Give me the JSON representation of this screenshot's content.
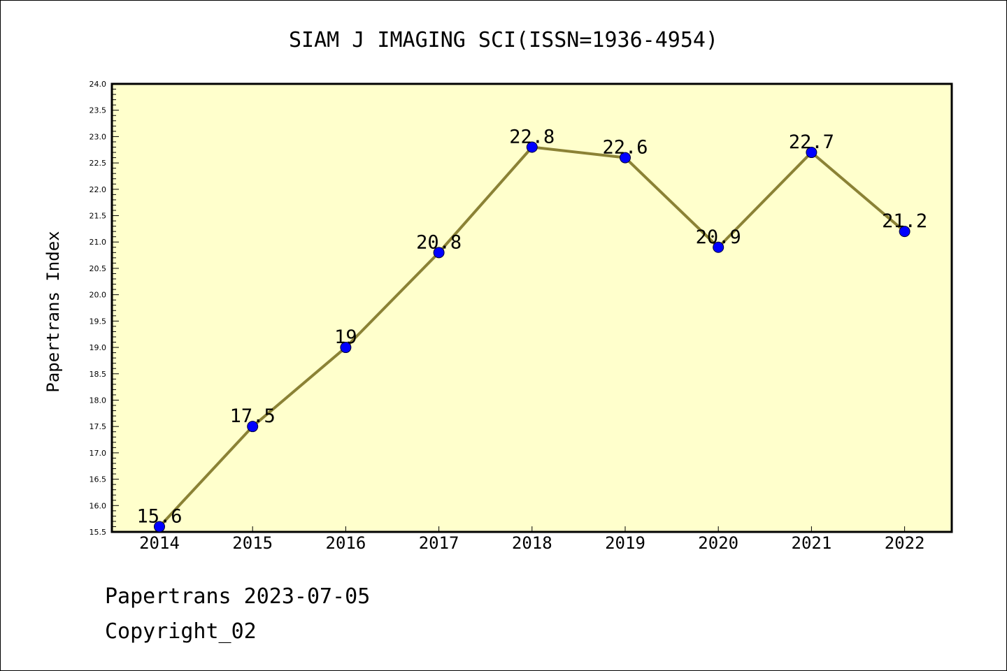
{
  "chart_data": {
    "type": "line",
    "title": "SIAM J IMAGING SCI(ISSN=1936-4954)",
    "ylabel": "Papertrans Index",
    "xlabel": "",
    "categories": [
      "2014",
      "2015",
      "2016",
      "2017",
      "2018",
      "2019",
      "2020",
      "2021",
      "2022"
    ],
    "values": [
      15.6,
      17.5,
      19,
      20.8,
      22.8,
      22.6,
      20.9,
      22.7,
      21.2
    ],
    "data_labels": [
      "15.6",
      "17.5",
      "19",
      "20.8",
      "22.8",
      "22.6",
      "20.9",
      "22.7",
      "21.2"
    ],
    "ylim": [
      15.5,
      24.0
    ],
    "ytick_step": 0.5,
    "ytick_labels": [
      "15.5",
      "16.0",
      "16.5",
      "17.0",
      "17.5",
      "18.0",
      "18.5",
      "19.0",
      "19.5",
      "20.0",
      "20.5",
      "21.0",
      "21.5",
      "22.0",
      "22.5",
      "23.0",
      "23.5",
      "24.0"
    ],
    "grid": false,
    "colors": {
      "plot_background": "#ffffcc",
      "line": "#8b8235",
      "marker": "#0000ff",
      "axes": "#000000"
    }
  },
  "footer": {
    "line1": "Papertrans 2023-07-05",
    "line2": "Copyright_02"
  }
}
